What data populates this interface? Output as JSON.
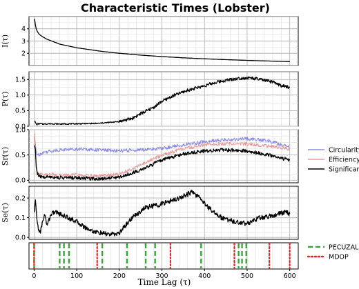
{
  "chart_data": {
    "type": "line",
    "title": "Characteristic Times (Lobster)",
    "xlabel": "Time Lag (τ)",
    "xlim": [
      -12,
      620
    ],
    "xticks": [
      0,
      100,
      200,
      300,
      400,
      500,
      600
    ],
    "grid": true,
    "panels": [
      {
        "id": "I",
        "ylabel": "I(τ)",
        "ylim": [
          1.0,
          5.0
        ],
        "yticks": [
          2,
          3,
          4
        ],
        "series": [
          {
            "name": "",
            "color": "#000000",
            "x": [
              1,
              2,
              3,
              5,
              8,
              12,
              20,
              30,
              45,
              60,
              80,
              100,
              130,
              160,
              200,
              250,
              300,
              350,
              400,
              450,
              500,
              550,
              600
            ],
            "y": [
              4.8,
              4.6,
              4.3,
              4.0,
              3.75,
              3.55,
              3.35,
              3.15,
              2.95,
              2.75,
              2.6,
              2.45,
              2.3,
              2.15,
              2.0,
              1.85,
              1.73,
              1.63,
              1.55,
              1.48,
              1.42,
              1.37,
              1.32
            ]
          }
        ]
      },
      {
        "id": "P",
        "ylabel": "P(τ)",
        "ylim": [
          0.0,
          1.75
        ],
        "yticks": [
          0.0,
          0.5,
          1.0,
          1.5
        ],
        "series": [
          {
            "name": "",
            "color": "#000000",
            "x": [
              1,
              3,
              6,
              10,
              20,
              40,
              60,
              100,
              150,
              200,
              230,
              250,
              280,
              300,
              330,
              360,
              400,
              430,
              460,
              490,
              510,
              530,
              560,
              580,
              600
            ],
            "y": [
              0.18,
              0.12,
              0.05,
              0.08,
              0.07,
              0.08,
              0.07,
              0.08,
              0.09,
              0.15,
              0.25,
              0.4,
              0.6,
              0.8,
              1.0,
              1.15,
              1.3,
              1.42,
              1.5,
              1.55,
              1.55,
              1.5,
              1.42,
              1.3,
              1.25
            ]
          }
        ]
      },
      {
        "id": "Sr",
        "ylabel": "Sr(τ)",
        "ylim": [
          -0.05,
          1.0
        ],
        "yticks": [
          0.0,
          0.5,
          1.0
        ],
        "series": [
          {
            "name": "Circularity",
            "color": "#8888e6",
            "x": [
              1,
              3,
              5,
              10,
              20,
              40,
              60,
              100,
              150,
              200,
              250,
              300,
              350,
              400,
              450,
              500,
              550,
              600
            ],
            "y": [
              0.85,
              0.7,
              0.55,
              0.5,
              0.55,
              0.58,
              0.6,
              0.62,
              0.6,
              0.58,
              0.6,
              0.63,
              0.7,
              0.76,
              0.8,
              0.82,
              0.78,
              0.65
            ]
          },
          {
            "name": "Efficiency",
            "color": "#e89a9a",
            "x": [
              1,
              3,
              5,
              8,
              12,
              20,
              40,
              60,
              100,
              150,
              200,
              250,
              300,
              350,
              400,
              450,
              500,
              550,
              600
            ],
            "y": [
              0.95,
              0.6,
              0.3,
              0.18,
              0.12,
              0.1,
              0.12,
              0.1,
              0.1,
              0.08,
              0.12,
              0.3,
              0.5,
              0.62,
              0.7,
              0.72,
              0.72,
              0.68,
              0.62
            ]
          },
          {
            "name": "Significance",
            "color": "#000000",
            "x": [
              1,
              3,
              5,
              8,
              12,
              20,
              40,
              60,
              100,
              150,
              200,
              250,
              300,
              350,
              400,
              450,
              500,
              550,
              600
            ],
            "y": [
              0.7,
              0.6,
              0.25,
              0.12,
              0.08,
              0.06,
              0.07,
              0.05,
              0.05,
              0.03,
              0.06,
              0.2,
              0.4,
              0.52,
              0.58,
              0.6,
              0.58,
              0.5,
              0.4
            ]
          }
        ]
      },
      {
        "id": "Se",
        "ylabel": "Se(τ)",
        "ylim": [
          -0.01,
          0.26
        ],
        "yticks": [
          0.0,
          0.1,
          0.2
        ],
        "series": [
          {
            "name": "",
            "color": "#000000",
            "x": [
              1,
              3,
              6,
              10,
              15,
              20,
              25,
              30,
              40,
              50,
              60,
              80,
              100,
              120,
              140,
              160,
              180,
              200,
              210,
              230,
              260,
              300,
              340,
              370,
              390,
              410,
              440,
              470,
              500,
              530,
              560,
              590,
              600
            ],
            "y": [
              0.12,
              0.2,
              0.1,
              0.04,
              0.03,
              0.08,
              0.12,
              0.06,
              0.12,
              0.13,
              0.12,
              0.1,
              0.08,
              0.05,
              0.03,
              0.02,
              0.015,
              0.02,
              0.05,
              0.1,
              0.15,
              0.17,
              0.2,
              0.23,
              0.2,
              0.15,
              0.1,
              0.08,
              0.07,
              0.1,
              0.11,
              0.13,
              0.12
            ]
          }
        ]
      }
    ],
    "markers_panel": {
      "legend": [
        {
          "name": "PECUZAL",
          "color": "#33aa33",
          "style": "dashed"
        },
        {
          "name": "MDOP",
          "color": "#ee2222",
          "style": "dotted"
        }
      ],
      "pecuzal_x": [
        0,
        60,
        70,
        82,
        160,
        218,
        262,
        284,
        392,
        480,
        488,
        498
      ],
      "mdop_x": [
        0,
        148,
        320,
        470,
        552,
        600
      ]
    }
  }
}
